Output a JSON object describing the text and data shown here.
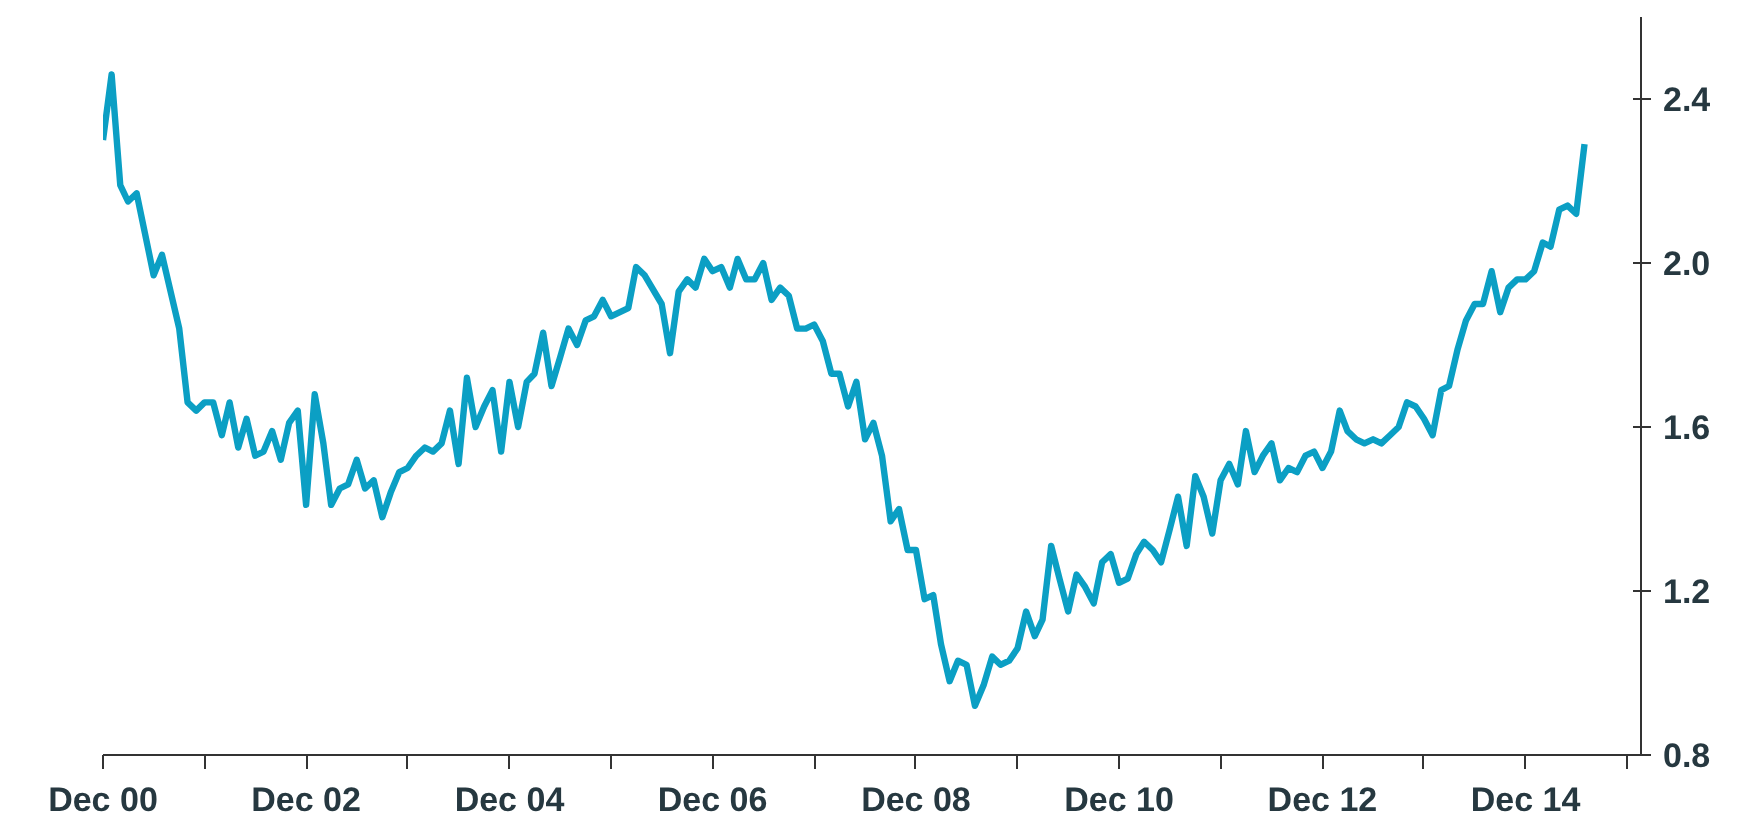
{
  "chart_data": {
    "type": "line",
    "xlim": [
      "2000-12",
      "2016-01-20"
    ],
    "ylim": [
      0.8,
      2.6
    ],
    "xticks": [
      {
        "value": "2000-12",
        "label": "Dec 00"
      },
      {
        "value": "2001-12",
        "label": null
      },
      {
        "value": "2002-12",
        "label": "Dec 02"
      },
      {
        "value": "2003-12",
        "label": null
      },
      {
        "value": "2004-12",
        "label": "Dec 04"
      },
      {
        "value": "2005-12",
        "label": null
      },
      {
        "value": "2006-12",
        "label": "Dec 06"
      },
      {
        "value": "2007-12",
        "label": null
      },
      {
        "value": "2008-12",
        "label": "Dec 08"
      },
      {
        "value": "2009-12",
        "label": null
      },
      {
        "value": "2010-12",
        "label": "Dec 10"
      },
      {
        "value": "2011-12",
        "label": null
      },
      {
        "value": "2012-12",
        "label": "Dec 12"
      },
      {
        "value": "2013-12",
        "label": null
      },
      {
        "value": "2014-12",
        "label": "Dec 14"
      },
      {
        "value": "2015-12",
        "label": null
      }
    ],
    "yticks": [
      0.8,
      1.2,
      1.6,
      {
        "value": 2.0,
        "label": "2.0"
      },
      2.4
    ],
    "grid": false,
    "marker": "none",
    "line_style": "solid",
    "series": [
      {
        "color": "#0b9fc4",
        "x": [
          "2000-12",
          "2001-01",
          "2001-02",
          "2001-03",
          "2001-04",
          "2001-06",
          "2001-07",
          "2001-09",
          "2001-10",
          "2001-11",
          "2001-12",
          "2002-01",
          "2002-02",
          "2002-03",
          "2002-04",
          "2002-05",
          "2002-06",
          "2002-07",
          "2002-08",
          "2002-09",
          "2002-10",
          "2002-11",
          "2002-12",
          "2003-01",
          "2003-02",
          "2003-03",
          "2003-04",
          "2003-05",
          "2003-06",
          "2003-07",
          "2003-08",
          "2003-09",
          "2003-10",
          "2003-11",
          "2003-12",
          "2004-01",
          "2004-02",
          "2004-03",
          "2004-04",
          "2004-05",
          "2004-06",
          "2004-07",
          "2004-08",
          "2004-09",
          "2004-10",
          "2004-11",
          "2004-12",
          "2005-01",
          "2005-02",
          "2005-03",
          "2005-04",
          "2005-05",
          "2005-06",
          "2005-07",
          "2005-08",
          "2005-09",
          "2005-10",
          "2005-11",
          "2005-12",
          "2006-02",
          "2006-03",
          "2006-04",
          "2006-06",
          "2006-07",
          "2006-08",
          "2006-09",
          "2006-10",
          "2006-11",
          "2006-12",
          "2007-01",
          "2007-02",
          "2007-03",
          "2007-04",
          "2007-05",
          "2007-06",
          "2007-07",
          "2007-08",
          "2007-09",
          "2007-10",
          "2007-11",
          "2007-12",
          "2008-01",
          "2008-02",
          "2008-03",
          "2008-04",
          "2008-05",
          "2008-06",
          "2008-07",
          "2008-08",
          "2008-09",
          "2008-10",
          "2008-11",
          "2008-12",
          "2009-01",
          "2009-02",
          "2009-03",
          "2009-04",
          "2009-05",
          "2009-06",
          "2009-07",
          "2009-08",
          "2009-09",
          "2009-10",
          "2009-11",
          "2009-12",
          "2010-01",
          "2010-02",
          "2010-03",
          "2010-04",
          "2010-05",
          "2010-06",
          "2010-07",
          "2010-08",
          "2010-09",
          "2010-10",
          "2010-11",
          "2010-12",
          "2011-01",
          "2011-02",
          "2011-03",
          "2011-04",
          "2011-05",
          "2011-06",
          "2011-07",
          "2011-08",
          "2011-09",
          "2011-10",
          "2011-11",
          "2011-12",
          "2012-01",
          "2012-02",
          "2012-03",
          "2012-04",
          "2012-05",
          "2012-06",
          "2012-07",
          "2012-08",
          "2012-09",
          "2012-10",
          "2012-11",
          "2012-12",
          "2013-01",
          "2013-02",
          "2013-03",
          "2013-04",
          "2013-05",
          "2013-06",
          "2013-07",
          "2013-08",
          "2013-09",
          "2013-10",
          "2013-11",
          "2013-12",
          "2014-01",
          "2014-02",
          "2014-03",
          "2014-04",
          "2014-05",
          "2014-06",
          "2014-07",
          "2014-08",
          "2014-09",
          "2014-10",
          "2014-11",
          "2014-12",
          "2015-01",
          "2015-02",
          "2015-03",
          "2015-04",
          "2015-05",
          "2015-06",
          "2015-07"
        ],
        "values": [
          2.3,
          2.46,
          2.19,
          2.15,
          2.17,
          1.97,
          2.02,
          1.84,
          1.66,
          1.64,
          1.66,
          1.66,
          1.58,
          1.66,
          1.55,
          1.62,
          1.53,
          1.54,
          1.59,
          1.52,
          1.61,
          1.64,
          1.41,
          1.68,
          1.56,
          1.41,
          1.45,
          1.46,
          1.52,
          1.45,
          1.47,
          1.38,
          1.44,
          1.49,
          1.5,
          1.53,
          1.55,
          1.54,
          1.56,
          1.64,
          1.51,
          1.72,
          1.6,
          1.65,
          1.69,
          1.54,
          1.71,
          1.6,
          1.71,
          1.73,
          1.83,
          1.7,
          1.77,
          1.84,
          1.8,
          1.86,
          1.87,
          1.91,
          1.87,
          1.89,
          1.99,
          1.97,
          1.9,
          1.78,
          1.93,
          1.96,
          1.94,
          2.01,
          1.98,
          1.99,
          1.94,
          2.01,
          1.96,
          1.96,
          2.0,
          1.91,
          1.94,
          1.92,
          1.84,
          1.84,
          1.85,
          1.81,
          1.73,
          1.73,
          1.65,
          1.71,
          1.57,
          1.61,
          1.53,
          1.37,
          1.4,
          1.3,
          1.3,
          1.18,
          1.19,
          1.07,
          0.98,
          1.03,
          1.02,
          0.92,
          0.97,
          1.04,
          1.02,
          1.03,
          1.06,
          1.15,
          1.09,
          1.13,
          1.31,
          1.23,
          1.15,
          1.24,
          1.21,
          1.17,
          1.27,
          1.29,
          1.22,
          1.23,
          1.29,
          1.32,
          1.3,
          1.27,
          1.35,
          1.43,
          1.31,
          1.48,
          1.43,
          1.34,
          1.47,
          1.51,
          1.46,
          1.59,
          1.49,
          1.53,
          1.56,
          1.47,
          1.5,
          1.49,
          1.53,
          1.54,
          1.5,
          1.54,
          1.64,
          1.59,
          1.57,
          1.56,
          1.57,
          1.56,
          1.58,
          1.6,
          1.66,
          1.65,
          1.62,
          1.58,
          1.69,
          1.7,
          1.79,
          1.86,
          1.9,
          1.9,
          1.98,
          1.88,
          1.94,
          1.96,
          1.96,
          1.98,
          2.05,
          2.04,
          2.13,
          2.14,
          2.12,
          2.29
        ]
      }
    ]
  }
}
